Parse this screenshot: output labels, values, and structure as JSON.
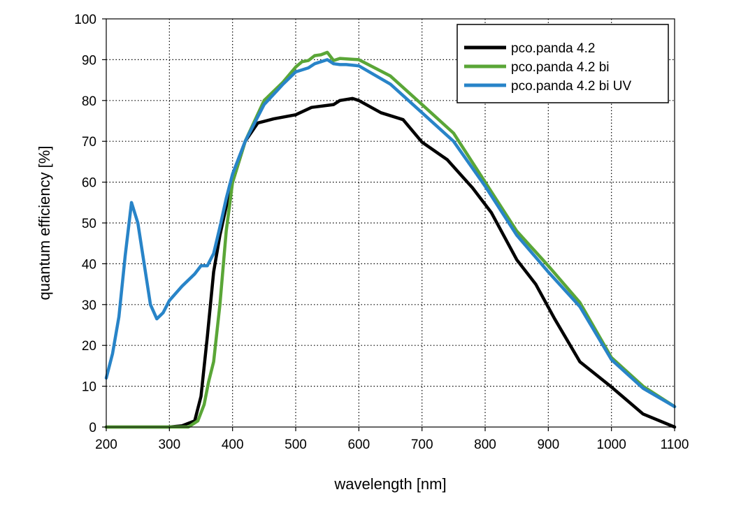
{
  "chart_data": {
    "type": "line",
    "xlabel": "wavelength [nm]",
    "ylabel": "quantum efficiency [%]",
    "xlim": [
      200,
      1100
    ],
    "ylim": [
      0,
      100
    ],
    "xticks": [
      200,
      300,
      400,
      500,
      600,
      700,
      800,
      900,
      1000,
      1100
    ],
    "yticks": [
      0,
      10,
      20,
      30,
      40,
      50,
      60,
      70,
      80,
      90,
      100
    ],
    "grid": true,
    "legend_position": "top-right",
    "series": [
      {
        "name": "pco.panda 4.2",
        "color": "#000000",
        "x": [
          200,
          300,
          320,
          340,
          350,
          360,
          370,
          380,
          390,
          400,
          410,
          420,
          440,
          465,
          500,
          525,
          560,
          570,
          590,
          600,
          635,
          670,
          700,
          740,
          780,
          810,
          850,
          880,
          910,
          950,
          1000,
          1050,
          1100
        ],
        "y": [
          0,
          0,
          0.3,
          1.5,
          7.5,
          22,
          38,
          47,
          54,
          60,
          65,
          70,
          74.5,
          75.5,
          76.5,
          78.3,
          79,
          80,
          80.5,
          80,
          77,
          75.3,
          69.8,
          65.5,
          58.6,
          52.5,
          41,
          35,
          26.5,
          16,
          9.8,
          3.2,
          0
        ]
      },
      {
        "name": "pco.panda 4.2 bi",
        "color": "#5aa637",
        "x": [
          200,
          330,
          345,
          355,
          362,
          370,
          380,
          390,
          400,
          420,
          450,
          480,
          500,
          510,
          520,
          530,
          540,
          550,
          560,
          570,
          580,
          600,
          650,
          700,
          750,
          800,
          850,
          900,
          950,
          1000,
          1050,
          1100
        ],
        "y": [
          0,
          0,
          1.5,
          5.5,
          11,
          16,
          30,
          48,
          60,
          70,
          80,
          84.5,
          88.2,
          89.5,
          89.8,
          91,
          91.2,
          91.8,
          89.8,
          90.3,
          90.2,
          90,
          86,
          79,
          72,
          60,
          48,
          39.5,
          30.5,
          17,
          10,
          5
        ]
      },
      {
        "name": "pco.panda 4.2 bi UV",
        "color": "#2884c8",
        "x": [
          200,
          210,
          220,
          230,
          240,
          250,
          260,
          270,
          280,
          290,
          300,
          320,
          340,
          350,
          360,
          370,
          380,
          390,
          400,
          420,
          450,
          480,
          500,
          510,
          520,
          530,
          540,
          550,
          560,
          570,
          580,
          600,
          650,
          700,
          750,
          800,
          850,
          900,
          950,
          1000,
          1050,
          1100
        ],
        "y": [
          12,
          18,
          27,
          42,
          55,
          50,
          40,
          30,
          26.5,
          28,
          31,
          34.5,
          37.5,
          39.5,
          39.5,
          42.5,
          49,
          56,
          62,
          70,
          79,
          84,
          87,
          87.5,
          88,
          89,
          89.5,
          90,
          89,
          88.8,
          88.8,
          88.5,
          84,
          77,
          70,
          59,
          47,
          38,
          29.5,
          16.5,
          9.5,
          5
        ]
      }
    ]
  }
}
